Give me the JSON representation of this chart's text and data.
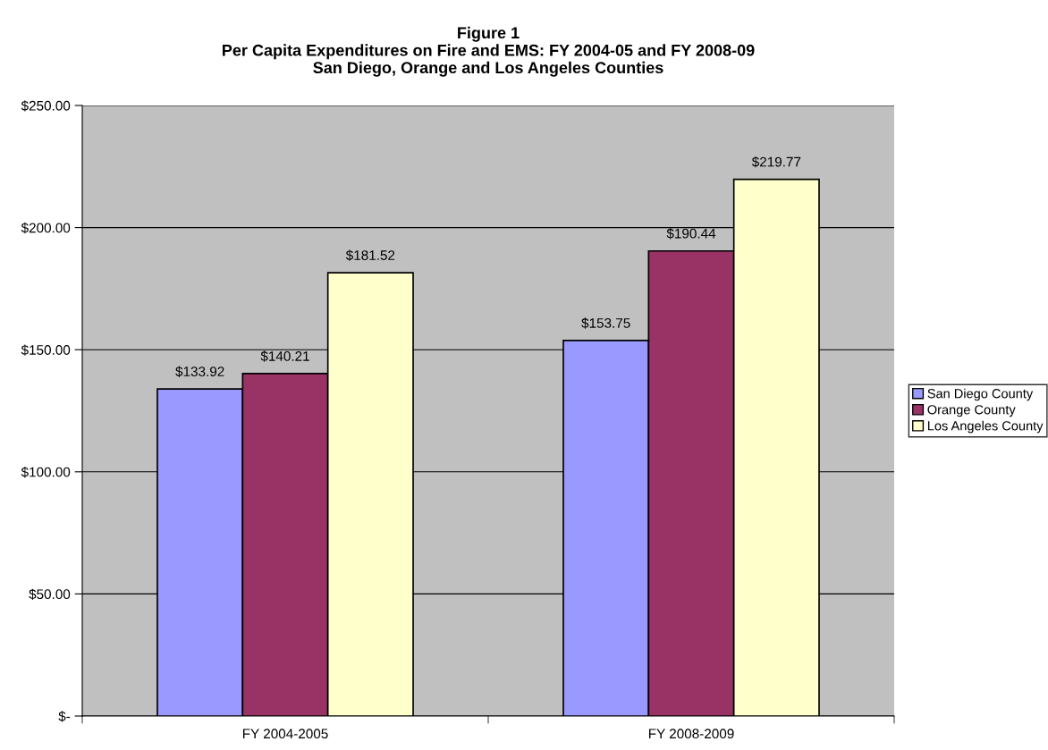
{
  "chart_data": {
    "type": "bar",
    "title": "Figure 1\nPer Capita Expenditures on Fire and EMS: FY 2004-05 and FY 2008-09\nSan Diego, Orange and Los Angeles Counties",
    "categories": [
      "FY 2004-2005",
      "FY 2008-2009"
    ],
    "series": [
      {
        "name": "San Diego County",
        "color": "#9999ff",
        "values": [
          133.92,
          153.75
        ],
        "value_labels": [
          "$133.92",
          "$153.75"
        ]
      },
      {
        "name": "Orange County",
        "color": "#993366",
        "values": [
          140.21,
          190.44
        ],
        "value_labels": [
          "$140.21",
          "$190.44"
        ]
      },
      {
        "name": "Los Angeles County",
        "color": "#ffffcc",
        "values": [
          181.52,
          219.77
        ],
        "value_labels": [
          "$181.52",
          "$219.77"
        ]
      }
    ],
    "ylim": [
      0,
      250
    ],
    "yticks": [
      {
        "value": 0,
        "label": "$-"
      },
      {
        "value": 50,
        "label": "$50.00"
      },
      {
        "value": 100,
        "label": "$100.00"
      },
      {
        "value": 150,
        "label": "$150.00"
      },
      {
        "value": 200,
        "label": "$200.00"
      },
      {
        "value": 250,
        "label": "$250.00"
      }
    ],
    "grid": "y",
    "legend": "right"
  }
}
